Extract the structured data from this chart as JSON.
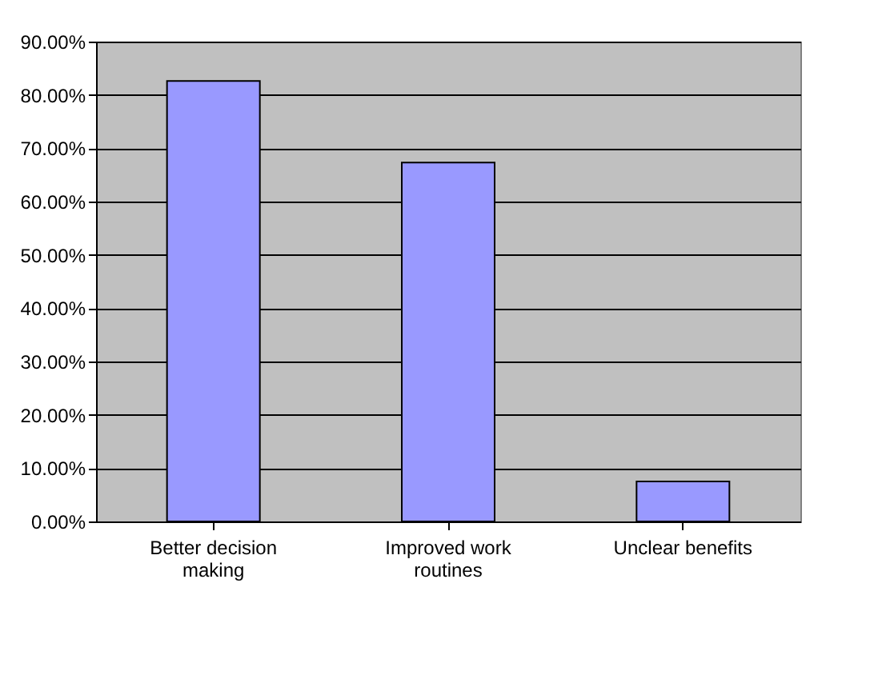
{
  "chart_data": {
    "type": "bar",
    "categories": [
      "Better decision making",
      "Improved work routines",
      "Unclear benefits"
    ],
    "values": [
      82.6,
      67.3,
      7.5
    ],
    "color": "#9999ff",
    "ylim": [
      0,
      90
    ],
    "yticks": [
      {
        "value": 0,
        "label": "0.00%"
      },
      {
        "value": 10,
        "label": "10.00%"
      },
      {
        "value": 20,
        "label": "20.00%"
      },
      {
        "value": 30,
        "label": "30.00%"
      },
      {
        "value": 40,
        "label": "40.00%"
      },
      {
        "value": 50,
        "label": "50.00%"
      },
      {
        "value": 60,
        "label": "60.00%"
      },
      {
        "value": 70,
        "label": "70.00%"
      },
      {
        "value": 80,
        "label": "80.00%"
      },
      {
        "value": 90,
        "label": "90.00%"
      }
    ],
    "grid": "y"
  }
}
